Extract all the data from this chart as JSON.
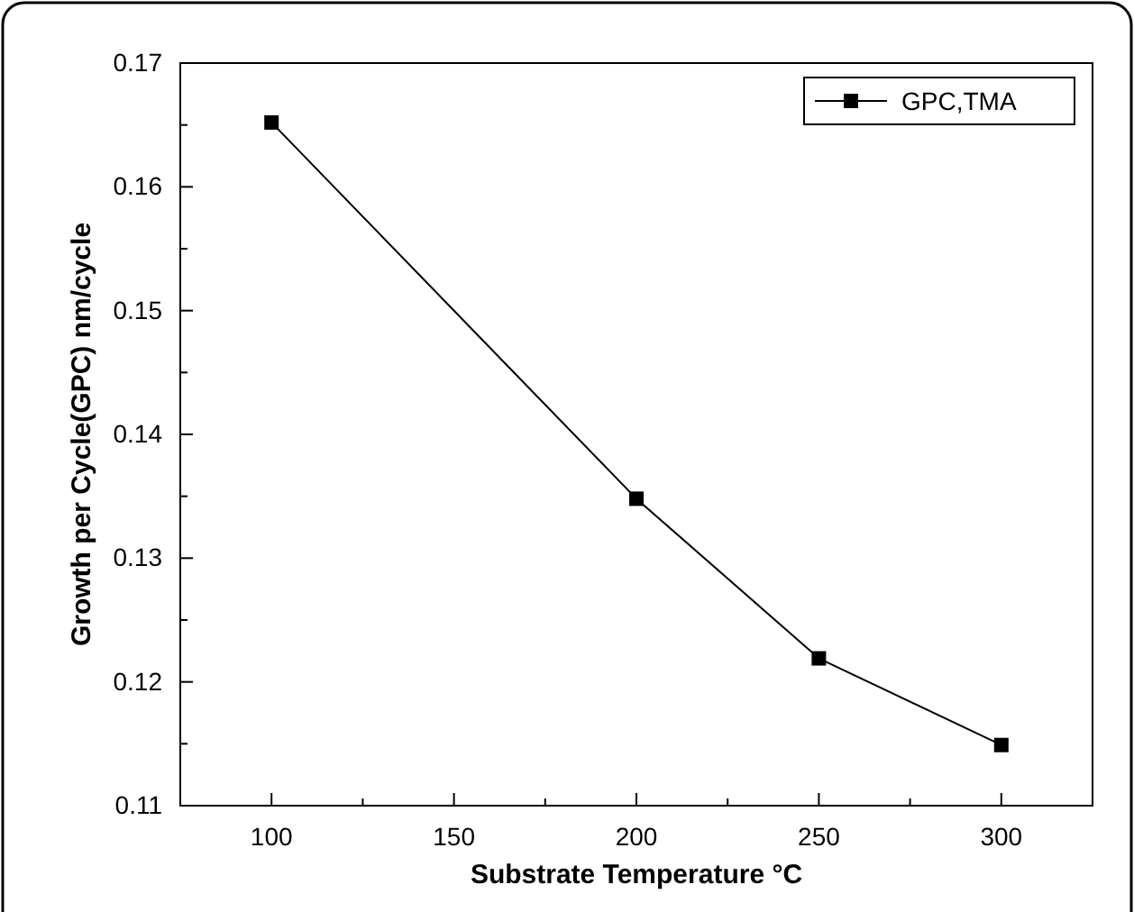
{
  "chart_data": {
    "type": "line",
    "xlabel": "Substrate Temperature   °C",
    "ylabel": "Growth per Cycle(GPC)   nm/cycle",
    "x": [
      100,
      200,
      250,
      300
    ],
    "series": [
      {
        "name": "GPC,TMA",
        "color": "#000000",
        "values": [
          0.1652,
          0.1348,
          0.1219,
          0.1149
        ]
      }
    ],
    "xlim": [
      75,
      325
    ],
    "xticks": [
      {
        "value": 75,
        "label": null
      },
      100,
      {
        "value": 125,
        "label": null
      },
      150,
      {
        "value": 175,
        "label": null
      },
      200,
      {
        "value": 225,
        "label": null
      },
      250,
      {
        "value": 275,
        "label": null
      },
      300,
      {
        "value": 325,
        "label": null
      }
    ],
    "ylim": [
      0.11,
      0.17
    ],
    "yticks": [
      0.11,
      {
        "value": 0.115,
        "label": null
      },
      0.12,
      {
        "value": 0.125,
        "label": null
      },
      0.13,
      {
        "value": 0.135,
        "label": null
      },
      0.14,
      {
        "value": 0.145,
        "label": null
      },
      0.15,
      {
        "value": 0.155,
        "label": null
      },
      0.16,
      {
        "value": 0.165,
        "label": null
      },
      0.17
    ],
    "marker": "square",
    "line_style": "solid",
    "legend": "top right",
    "grid": false
  }
}
